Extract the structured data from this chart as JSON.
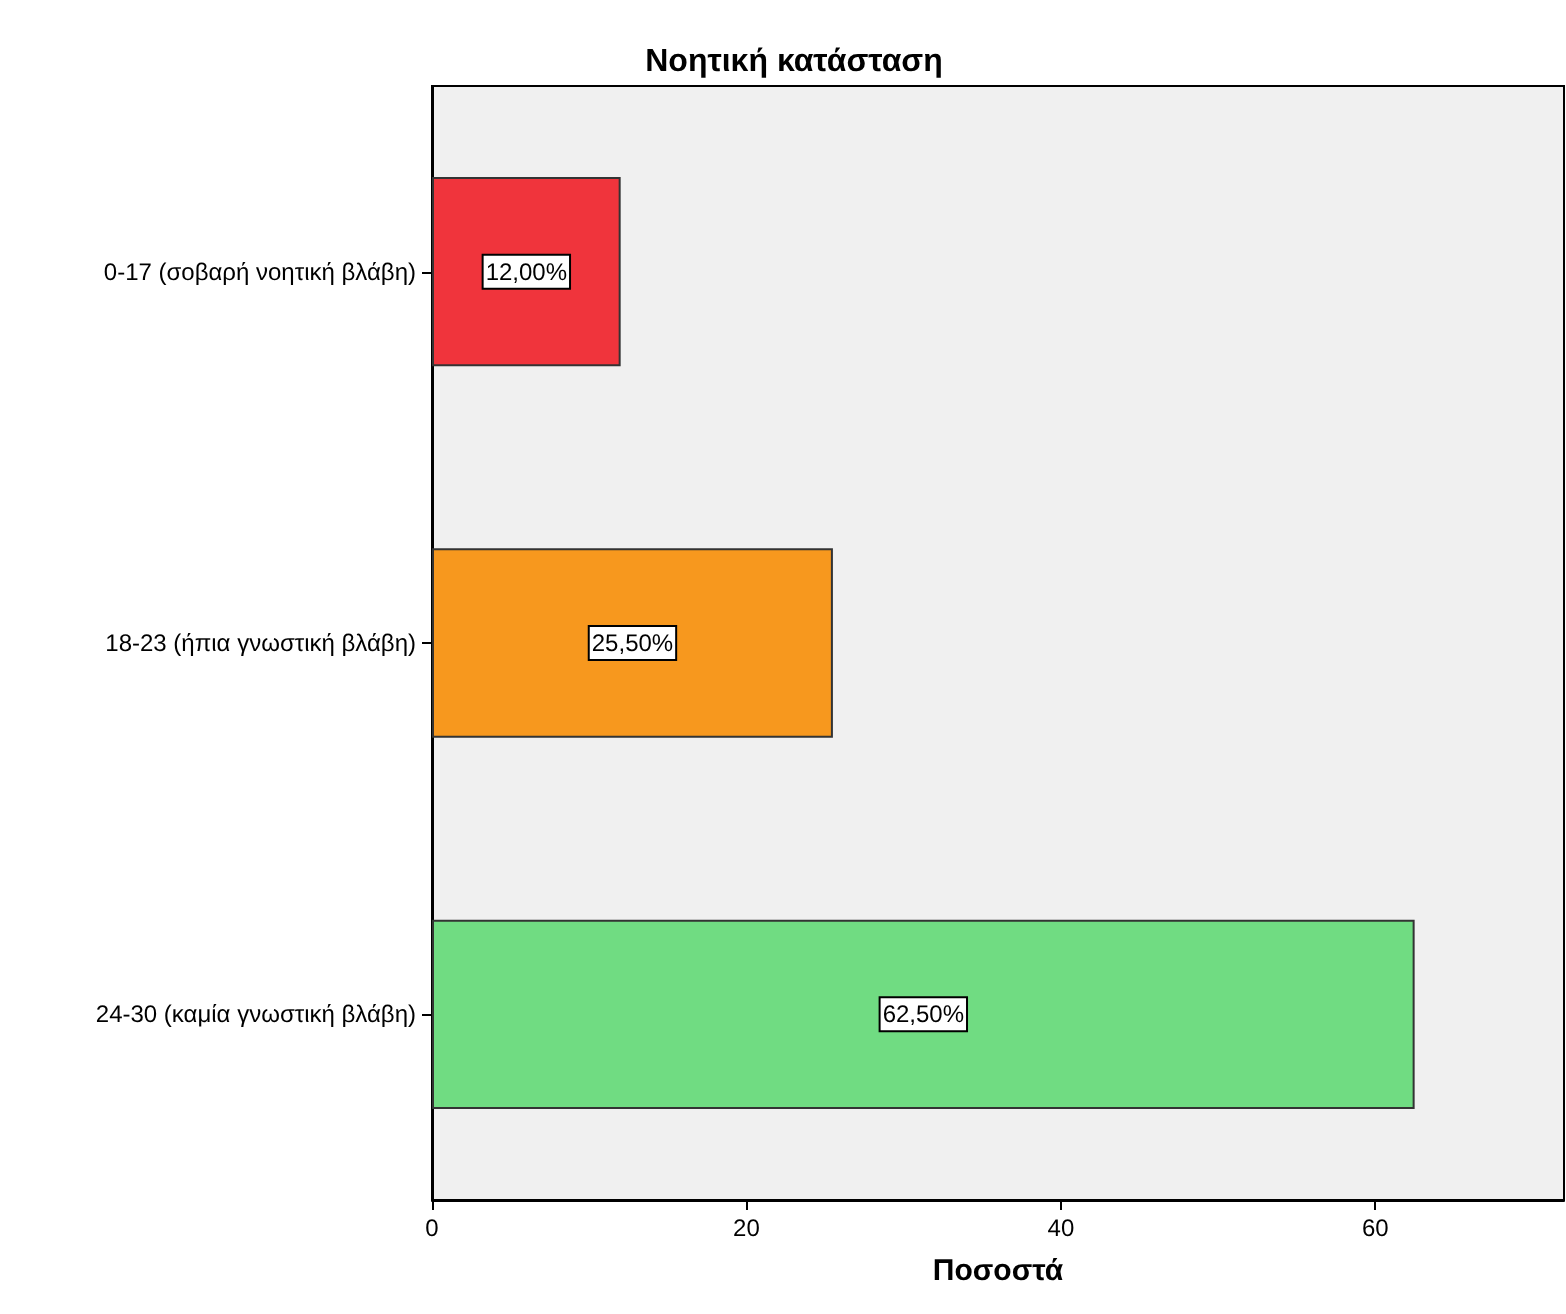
{
  "chart_data": {
    "type": "bar",
    "orientation": "horizontal",
    "title": "Νοητική κατάσταση",
    "xlabel": "Ποσοστά",
    "categories": [
      "0-17 (σοβαρή νοητική βλάβη)",
      "18-23 (ήπια γνωστική βλάβη)",
      "24-30 (καμία γνωστική βλάβη)"
    ],
    "values": [
      12,
      25.5,
      62.5
    ],
    "colors": [
      "#f0343c",
      "#f7981e",
      "#70dc82"
    ],
    "value_labels": [
      "12,00%",
      "25,50%",
      "62,50%"
    ],
    "xlim": [
      0,
      72
    ],
    "xticks": [
      0,
      20,
      40,
      60
    ],
    "grid": false
  }
}
